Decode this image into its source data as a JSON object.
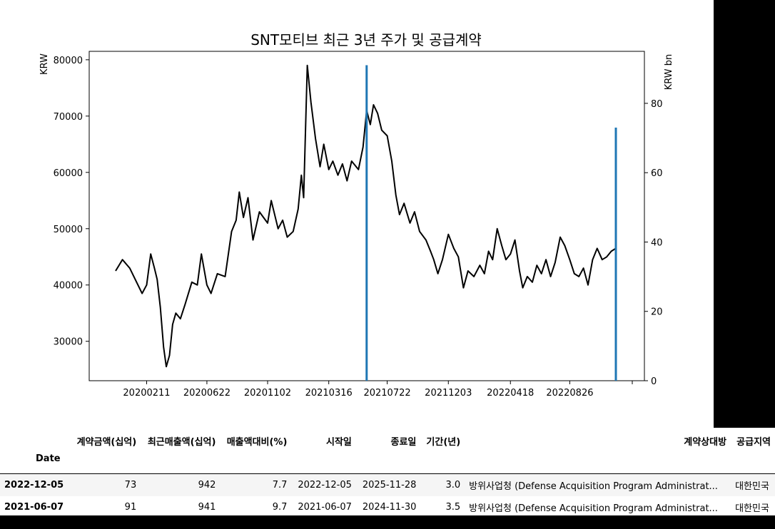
{
  "chart_data": {
    "type": "line",
    "title": "SNT모티브 최근 3년 주가 및 공급계약",
    "ylabel": "KRW",
    "y2label": "KRW bn",
    "ylim": [
      23000,
      81500
    ],
    "y2lim": [
      0,
      95
    ],
    "yticks": [
      30000,
      40000,
      50000,
      60000,
      70000,
      80000
    ],
    "y2ticks": [
      0,
      20,
      40,
      60,
      80
    ],
    "xticks": [
      "20200211",
      "20200622",
      "20201102",
      "20210316",
      "20210722",
      "20211203",
      "20220418",
      "20220826"
    ],
    "x_start": "2019-12-05",
    "x_end": "2022-12-05",
    "series": [
      {
        "type": "line",
        "points": [
          [
            "2019-12-05",
            42500
          ],
          [
            "2019-12-20",
            44500
          ],
          [
            "2020-01-05",
            43000
          ],
          [
            "2020-01-20",
            40500
          ],
          [
            "2020-02-01",
            38500
          ],
          [
            "2020-02-11",
            40000
          ],
          [
            "2020-02-20",
            45500
          ],
          [
            "2020-02-28",
            43000
          ],
          [
            "2020-03-05",
            41000
          ],
          [
            "2020-03-12",
            36000
          ],
          [
            "2020-03-19",
            29000
          ],
          [
            "2020-03-25",
            25500
          ],
          [
            "2020-04-01",
            27500
          ],
          [
            "2020-04-08",
            33000
          ],
          [
            "2020-04-15",
            35000
          ],
          [
            "2020-04-25",
            34000
          ],
          [
            "2020-05-05",
            36500
          ],
          [
            "2020-05-20",
            40500
          ],
          [
            "2020-06-01",
            40000
          ],
          [
            "2020-06-10",
            45500
          ],
          [
            "2020-06-22",
            40000
          ],
          [
            "2020-07-01",
            38500
          ],
          [
            "2020-07-15",
            42000
          ],
          [
            "2020-08-01",
            41500
          ],
          [
            "2020-08-15",
            49500
          ],
          [
            "2020-08-25",
            51500
          ],
          [
            "2020-09-01",
            56500
          ],
          [
            "2020-09-10",
            52000
          ],
          [
            "2020-09-20",
            55500
          ],
          [
            "2020-10-01",
            48000
          ],
          [
            "2020-10-15",
            53000
          ],
          [
            "2020-11-02",
            51000
          ],
          [
            "2020-11-10",
            55000
          ],
          [
            "2020-11-25",
            50000
          ],
          [
            "2020-12-05",
            51500
          ],
          [
            "2020-12-15",
            48500
          ],
          [
            "2020-12-28",
            49500
          ],
          [
            "2021-01-08",
            53500
          ],
          [
            "2021-01-15",
            59500
          ],
          [
            "2021-01-20",
            55500
          ],
          [
            "2021-01-28",
            79000
          ],
          [
            "2021-02-05",
            72500
          ],
          [
            "2021-02-15",
            66000
          ],
          [
            "2021-02-25",
            61000
          ],
          [
            "2021-03-05",
            65000
          ],
          [
            "2021-03-16",
            60500
          ],
          [
            "2021-03-25",
            62000
          ],
          [
            "2021-04-05",
            59500
          ],
          [
            "2021-04-15",
            61500
          ],
          [
            "2021-04-25",
            58500
          ],
          [
            "2021-05-05",
            62000
          ],
          [
            "2021-05-20",
            60500
          ],
          [
            "2021-05-30",
            64500
          ],
          [
            "2021-06-07",
            71000
          ],
          [
            "2021-06-15",
            68500
          ],
          [
            "2021-06-22",
            72000
          ],
          [
            "2021-07-01",
            70500
          ],
          [
            "2021-07-10",
            67500
          ],
          [
            "2021-07-22",
            66500
          ],
          [
            "2021-08-01",
            62000
          ],
          [
            "2021-08-10",
            56000
          ],
          [
            "2021-08-18",
            52500
          ],
          [
            "2021-08-28",
            54500
          ],
          [
            "2021-09-10",
            51000
          ],
          [
            "2021-09-20",
            53000
          ],
          [
            "2021-10-01",
            49500
          ],
          [
            "2021-10-15",
            48000
          ],
          [
            "2021-10-25",
            46000
          ],
          [
            "2021-11-01",
            44500
          ],
          [
            "2021-11-10",
            42000
          ],
          [
            "2021-11-20",
            44500
          ],
          [
            "2021-12-03",
            49000
          ],
          [
            "2021-12-15",
            46500
          ],
          [
            "2021-12-25",
            45000
          ],
          [
            "2022-01-05",
            39500
          ],
          [
            "2022-01-15",
            42500
          ],
          [
            "2022-01-28",
            41500
          ],
          [
            "2022-02-10",
            43500
          ],
          [
            "2022-02-20",
            42000
          ],
          [
            "2022-03-01",
            46000
          ],
          [
            "2022-03-10",
            44500
          ],
          [
            "2022-03-20",
            50000
          ],
          [
            "2022-03-30",
            47000
          ],
          [
            "2022-04-08",
            44500
          ],
          [
            "2022-04-18",
            45500
          ],
          [
            "2022-04-28",
            48000
          ],
          [
            "2022-05-08",
            42500
          ],
          [
            "2022-05-15",
            39500
          ],
          [
            "2022-05-25",
            41500
          ],
          [
            "2022-06-05",
            40500
          ],
          [
            "2022-06-15",
            43500
          ],
          [
            "2022-06-25",
            42000
          ],
          [
            "2022-07-05",
            44500
          ],
          [
            "2022-07-15",
            41500
          ],
          [
            "2022-07-25",
            44000
          ],
          [
            "2022-08-05",
            48500
          ],
          [
            "2022-08-15",
            47000
          ],
          [
            "2022-08-26",
            44500
          ],
          [
            "2022-09-05",
            42000
          ],
          [
            "2022-09-15",
            41500
          ],
          [
            "2022-09-25",
            43000
          ],
          [
            "2022-10-05",
            40000
          ],
          [
            "2022-10-15",
            44500
          ],
          [
            "2022-10-25",
            46500
          ],
          [
            "2022-11-05",
            44500
          ],
          [
            "2022-11-15",
            45000
          ],
          [
            "2022-11-25",
            46000
          ],
          [
            "2022-12-05",
            46500
          ]
        ],
        "color": "#000000"
      },
      {
        "type": "bar",
        "axis": "right",
        "points": [
          [
            "2021-06-07",
            91
          ],
          [
            "2022-12-05",
            73
          ]
        ],
        "color": "#1f77b4"
      }
    ]
  },
  "table": {
    "columns": [
      "계약금액(십억)",
      "최근매출액(십억)",
      "매출액대비(%)",
      "시작일",
      "종료일",
      "기간(년)",
      "계약상대방",
      "공급지역"
    ],
    "index_name": "Date",
    "rows": [
      {
        "date": "2022-12-05",
        "cells": [
          "73",
          "942",
          "7.7",
          "2022-12-05",
          "2025-11-28",
          "3.0",
          "방위사업청 (Defense Acquisition Program Administrat...",
          "대한민국"
        ]
      },
      {
        "date": "2021-06-07",
        "cells": [
          "91",
          "941",
          "9.7",
          "2021-06-07",
          "2024-11-30",
          "3.5",
          "방위사업청 (Defense Acquisition Program Administrat...",
          "대한민국"
        ]
      }
    ]
  }
}
